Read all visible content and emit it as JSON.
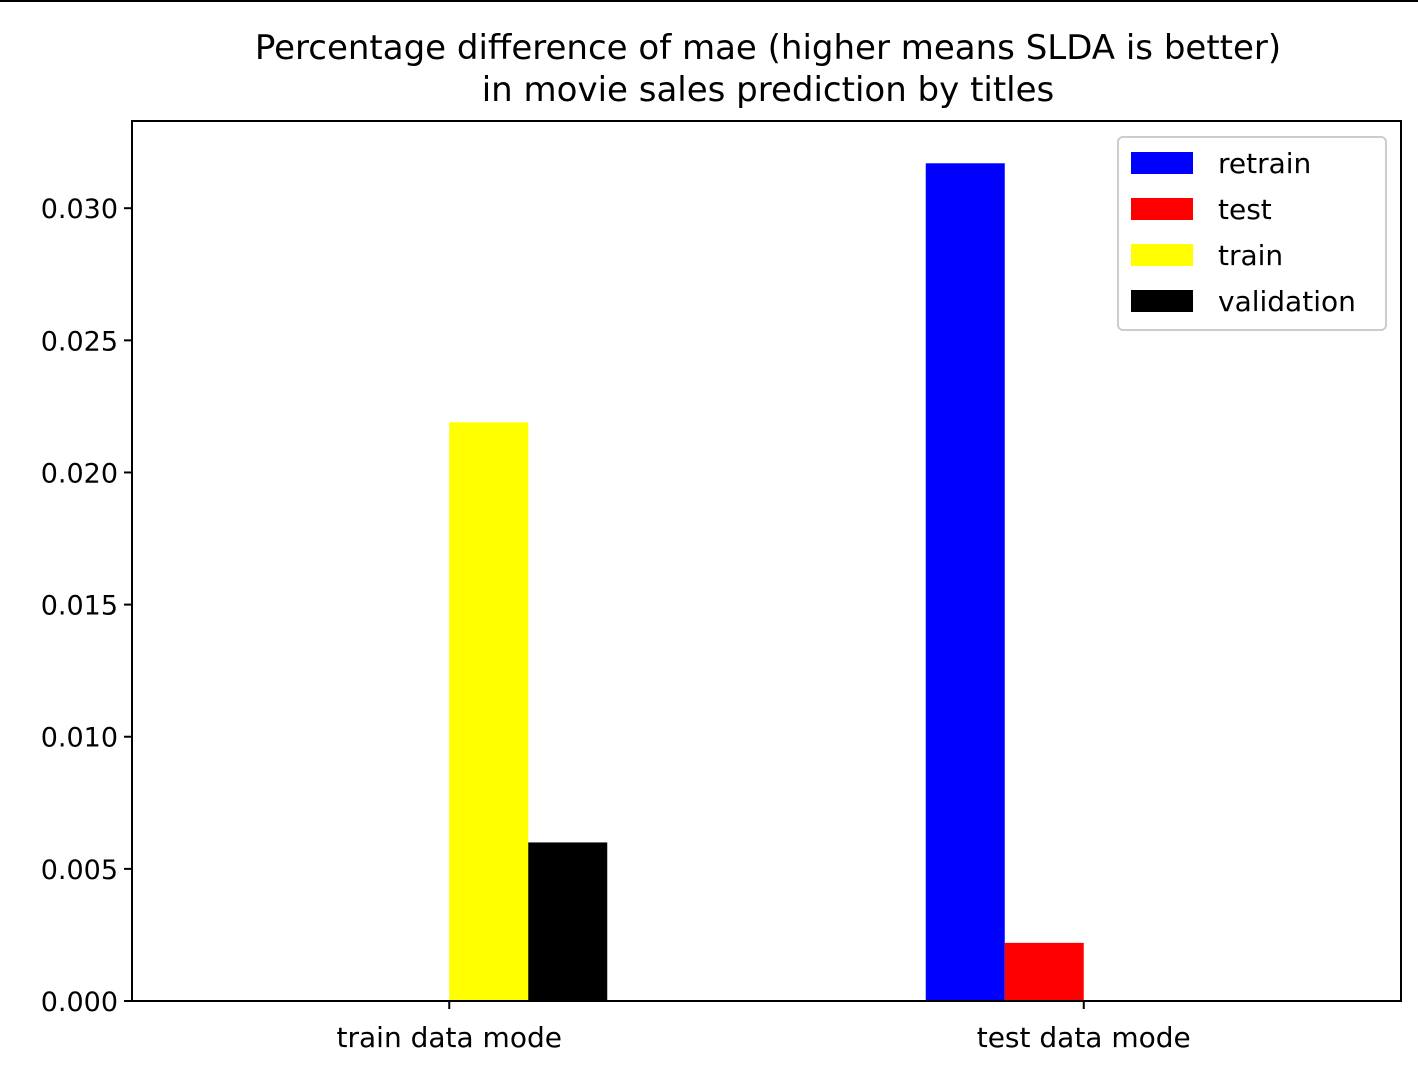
{
  "chart_data": {
    "type": "bar",
    "title_line1": "Percentage difference of mae (higher means SLDA is better)",
    "title_line2": "in movie sales prediction by titles",
    "xlabel": "",
    "ylabel": "",
    "categories": [
      "train data mode",
      "test data mode"
    ],
    "series": [
      {
        "name": "retrain",
        "color": "#0000ff",
        "values": [
          0,
          0.0317
        ]
      },
      {
        "name": "test",
        "color": "#ff0000",
        "values": [
          0,
          0.0022
        ]
      },
      {
        "name": "train",
        "color": "#ffff00",
        "values": [
          0.0219,
          0
        ]
      },
      {
        "name": "validation",
        "color": "#000000",
        "values": [
          0.006,
          0
        ]
      }
    ],
    "ylim": [
      0,
      0.0333
    ],
    "yticks": [
      "0.000",
      "0.005",
      "0.010",
      "0.015",
      "0.020",
      "0.025",
      "0.030"
    ],
    "ytick_values": [
      0,
      0.005,
      0.01,
      0.015,
      0.02,
      0.025,
      0.03
    ],
    "legend_position": "top-right",
    "grid": false
  }
}
